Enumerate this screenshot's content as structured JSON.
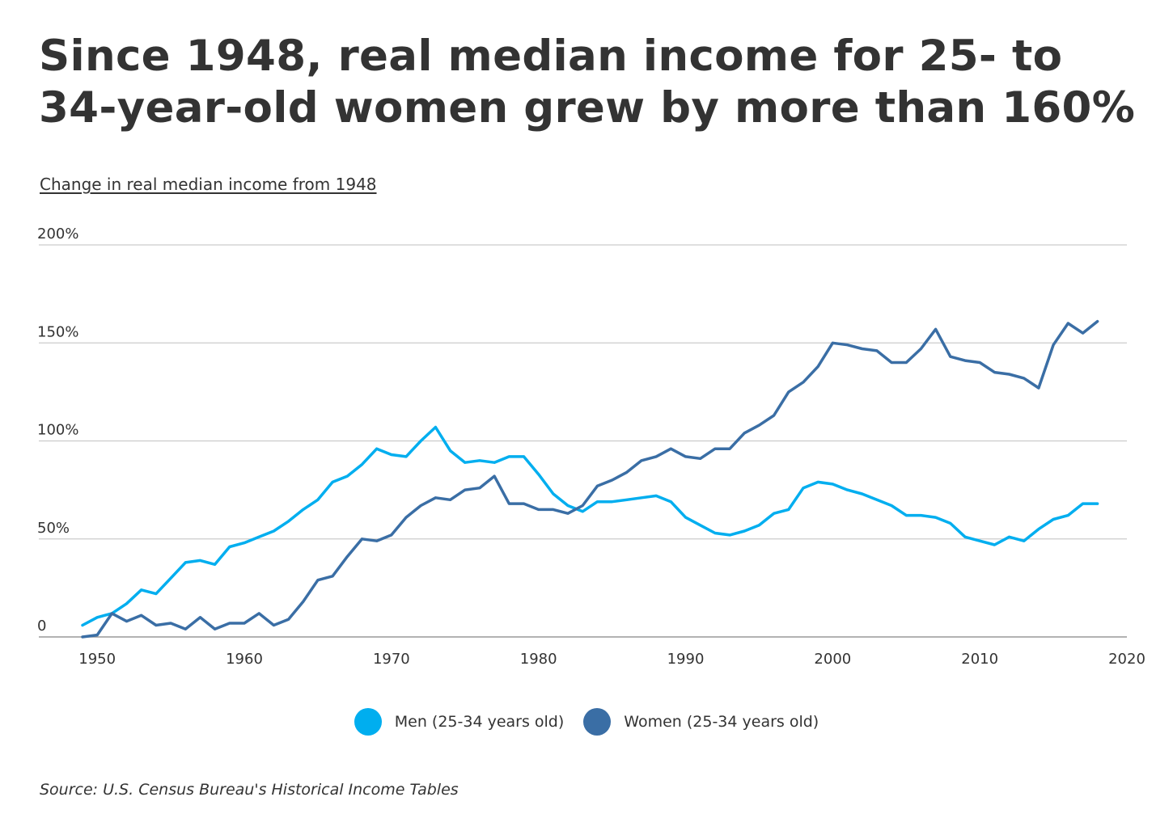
{
  "title": "Since 1948, real median income for 25- to 34-year-old women grew by more than 160%",
  "subtitle": "Change in real median income from 1948",
  "source": "Source:  U.S. Census Bureau's Historical Income Tables",
  "chart_data": {
    "type": "line",
    "title": "Since 1948, real median income for 25- to 34-year-old women grew by more than 160%",
    "subtitle": "Change in real median income from 1948",
    "xlabel": "",
    "ylabel": "",
    "xlim": [
      1949,
      2020
    ],
    "ylim": [
      0,
      200
    ],
    "x_ticks": [
      1950,
      1960,
      1970,
      1980,
      1990,
      2000,
      2010,
      2020
    ],
    "y_ticks": [
      {
        "value": 0,
        "label": "0"
      },
      {
        "value": 50,
        "label": "50%"
      },
      {
        "value": 100,
        "label": "100%"
      },
      {
        "value": 150,
        "label": "150%"
      },
      {
        "value": 200,
        "label": "200%"
      }
    ],
    "grid": "horizontal",
    "legend_position": "bottom",
    "series": [
      {
        "name": "Men (25-34 years old)",
        "color": "#00AEEF",
        "x": [
          1949,
          1950,
          1951,
          1952,
          1953,
          1954,
          1955,
          1956,
          1957,
          1958,
          1959,
          1960,
          1961,
          1962,
          1963,
          1964,
          1965,
          1966,
          1967,
          1968,
          1969,
          1970,
          1971,
          1972,
          1973,
          1974,
          1975,
          1976,
          1977,
          1978,
          1979,
          1980,
          1981,
          1982,
          1983,
          1984,
          1985,
          1986,
          1987,
          1988,
          1989,
          1990,
          1991,
          1992,
          1993,
          1994,
          1995,
          1996,
          1997,
          1998,
          1999,
          2000,
          2001,
          2002,
          2003,
          2004,
          2005,
          2006,
          2007,
          2008,
          2009,
          2010,
          2011,
          2012,
          2013,
          2014,
          2015,
          2016,
          2017,
          2018
        ],
        "values": [
          6,
          10,
          12,
          17,
          24,
          22,
          30,
          38,
          39,
          37,
          46,
          48,
          51,
          54,
          59,
          65,
          70,
          79,
          82,
          88,
          96,
          93,
          92,
          100,
          107,
          95,
          89,
          90,
          89,
          92,
          92,
          83,
          73,
          67,
          64,
          69,
          69,
          70,
          71,
          72,
          69,
          61,
          57,
          53,
          52,
          54,
          57,
          63,
          65,
          76,
          79,
          78,
          75,
          73,
          70,
          67,
          62,
          62,
          61,
          58,
          51,
          49,
          47,
          51,
          49,
          55,
          60,
          62,
          68,
          68
        ]
      },
      {
        "name": "Women (25-34 years old)",
        "color": "#3A6EA5",
        "x": [
          1949,
          1950,
          1951,
          1952,
          1953,
          1954,
          1955,
          1956,
          1957,
          1958,
          1959,
          1960,
          1961,
          1962,
          1963,
          1964,
          1965,
          1966,
          1967,
          1968,
          1969,
          1970,
          1971,
          1972,
          1973,
          1974,
          1975,
          1976,
          1977,
          1978,
          1979,
          1980,
          1981,
          1982,
          1983,
          1984,
          1985,
          1986,
          1987,
          1988,
          1989,
          1990,
          1991,
          1992,
          1993,
          1994,
          1995,
          1996,
          1997,
          1998,
          1999,
          2000,
          2001,
          2002,
          2003,
          2004,
          2005,
          2006,
          2007,
          2008,
          2009,
          2010,
          2011,
          2012,
          2013,
          2014,
          2015,
          2016,
          2017,
          2018
        ],
        "values": [
          0,
          1,
          12,
          8,
          11,
          6,
          7,
          4,
          10,
          4,
          7,
          7,
          12,
          6,
          9,
          18,
          29,
          31,
          41,
          50,
          49,
          52,
          61,
          67,
          71,
          70,
          75,
          76,
          82,
          68,
          68,
          65,
          65,
          63,
          67,
          77,
          80,
          84,
          90,
          92,
          96,
          92,
          91,
          96,
          96,
          104,
          108,
          113,
          125,
          130,
          138,
          150,
          149,
          147,
          146,
          140,
          140,
          147,
          157,
          143,
          141,
          140,
          135,
          134,
          132,
          127,
          149,
          160,
          155,
          161
        ]
      }
    ]
  }
}
